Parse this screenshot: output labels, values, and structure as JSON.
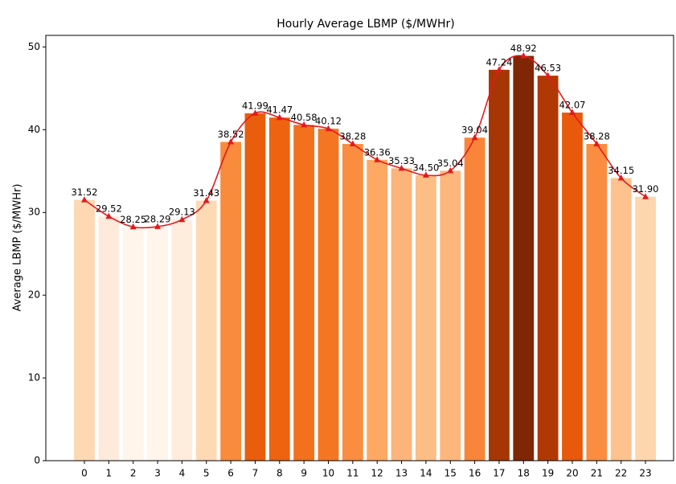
{
  "chart_data": {
    "type": "bar",
    "title": "Hourly Average LBMP ($/MWHr)",
    "y_label": "Average LBMP ($/MWHr)",
    "categories": [
      "0",
      "1",
      "2",
      "3",
      "4",
      "5",
      "6",
      "7",
      "8",
      "9",
      "10",
      "11",
      "12",
      "13",
      "14",
      "15",
      "16",
      "17",
      "18",
      "19",
      "20",
      "21",
      "22",
      "23"
    ],
    "values": [
      31.52,
      29.52,
      28.25,
      28.29,
      29.13,
      31.43,
      38.52,
      41.99,
      41.47,
      40.58,
      40.12,
      38.28,
      36.36,
      35.33,
      34.5,
      35.04,
      39.04,
      47.24,
      48.92,
      46.53,
      42.07,
      38.28,
      34.15,
      31.9
    ],
    "value_labels": [
      "31.52",
      "29.52",
      "28.25",
      "28.29",
      "29.13",
      "31.43",
      "38.52",
      "41.99",
      "41.47",
      "40.58",
      "40.12",
      "38.28",
      "36.36",
      "35.33",
      "34.50",
      "35.04",
      "39.04",
      "47.24",
      "48.92",
      "46.53",
      "42.07",
      "38.28",
      "34.15",
      "31.90"
    ],
    "colors": [
      "#fdd8b2",
      "#feeadb",
      "#fff5eb",
      "#fff5eb",
      "#feeddc",
      "#fdd9b4",
      "#f98b3c",
      "#e95e0d",
      "#ed6310",
      "#f3711c",
      "#f57622",
      "#fa8d40",
      "#fda863",
      "#fdb47a",
      "#fdbe86",
      "#fdb77d",
      "#f8853a",
      "#a63603",
      "#7f2704",
      "#b03903",
      "#e8590c",
      "#fa8d40",
      "#fdc28d",
      "#fdd6ae"
    ],
    "line_color": "#e31a1c",
    "ylim": [
      0,
      51.4
    ],
    "yticks": [
      0,
      10,
      20,
      30,
      40,
      50
    ],
    "grid": false
  }
}
